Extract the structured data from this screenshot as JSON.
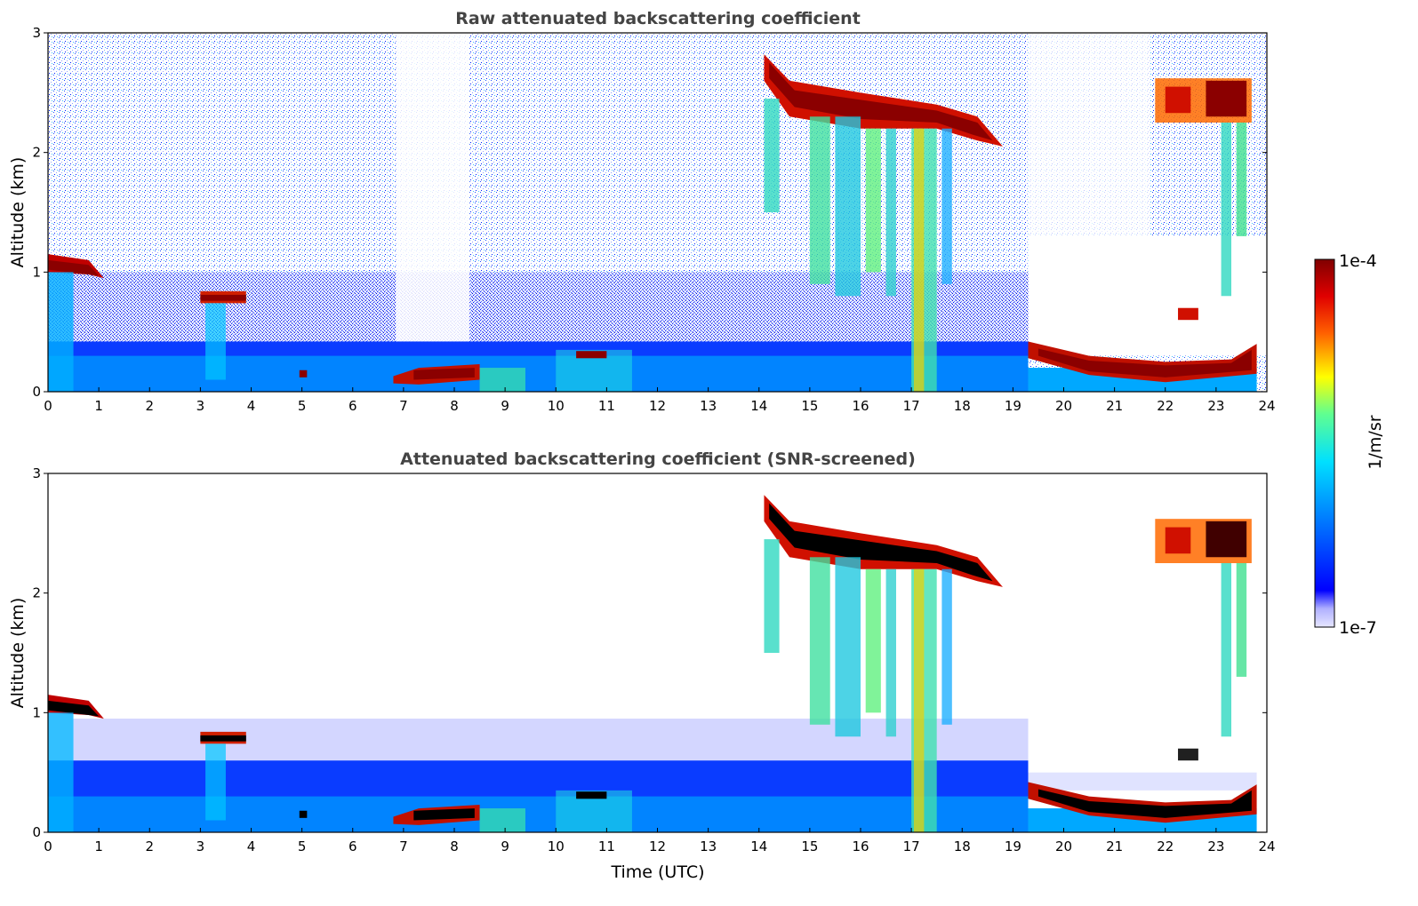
{
  "chart_data": [
    {
      "type": "heatmap",
      "title": "Raw attenuated backscattering coefficient",
      "xlabel": "",
      "ylabel": "Altitude (km)",
      "xlim": [
        0,
        24
      ],
      "ylim": [
        0,
        3
      ],
      "xticks": [
        "0",
        "1",
        "2",
        "3",
        "4",
        "5",
        "6",
        "7",
        "8",
        "9",
        "10",
        "11",
        "12",
        "13",
        "14",
        "15",
        "16",
        "17",
        "18",
        "19",
        "20",
        "21",
        "22",
        "23",
        "24"
      ],
      "yticks": [
        "0",
        "1",
        "2",
        "3"
      ],
      "features": [
        {
          "kind": "boundary_layer",
          "t0": 0,
          "t1": 19.3,
          "top_km": 0.4
        },
        {
          "kind": "cloud",
          "t0": 0,
          "t1": 1.1,
          "alt_km": 1.05
        },
        {
          "kind": "cloud",
          "t0": 3.0,
          "t1": 3.9,
          "alt_km": 0.78
        },
        {
          "kind": "cloud",
          "t0": 6.8,
          "t1": 8.6,
          "alt_km": 0.13
        },
        {
          "kind": "cloud",
          "t0": 14.1,
          "t1": 18.8,
          "alt_km_start": 2.75,
          "alt_km_end": 2.05
        },
        {
          "kind": "cloud",
          "t0": 19.3,
          "t1": 23.8,
          "alt_km": 0.25
        },
        {
          "kind": "cloud",
          "t0": 21.8,
          "t1": 23.7,
          "alt_km": 2.45
        }
      ]
    },
    {
      "type": "heatmap",
      "title": "Attenuated backscattering coefficient (SNR-screened)",
      "xlabel": "Time (UTC)",
      "ylabel": "Altitude (km)",
      "xlim": [
        0,
        24
      ],
      "ylim": [
        0,
        3
      ],
      "xticks": [
        "0",
        "1",
        "2",
        "3",
        "4",
        "5",
        "6",
        "7",
        "8",
        "9",
        "10",
        "11",
        "12",
        "13",
        "14",
        "15",
        "16",
        "17",
        "18",
        "19",
        "20",
        "21",
        "22",
        "23",
        "24"
      ],
      "yticks": [
        "0",
        "1",
        "2",
        "3"
      ]
    }
  ],
  "colorbar": {
    "max_label": "1e-4",
    "min_label": "1e-7",
    "unit_label": "1/m/sr",
    "colors": [
      "#e6e6ff",
      "#c8c8ff",
      "#9b9bff",
      "#0000ff",
      "#0040ff",
      "#0090ff",
      "#00d0ff",
      "#40ffc0",
      "#c0ff40",
      "#ffe000",
      "#ff8000",
      "#ff2000",
      "#c00000",
      "#800000"
    ]
  }
}
